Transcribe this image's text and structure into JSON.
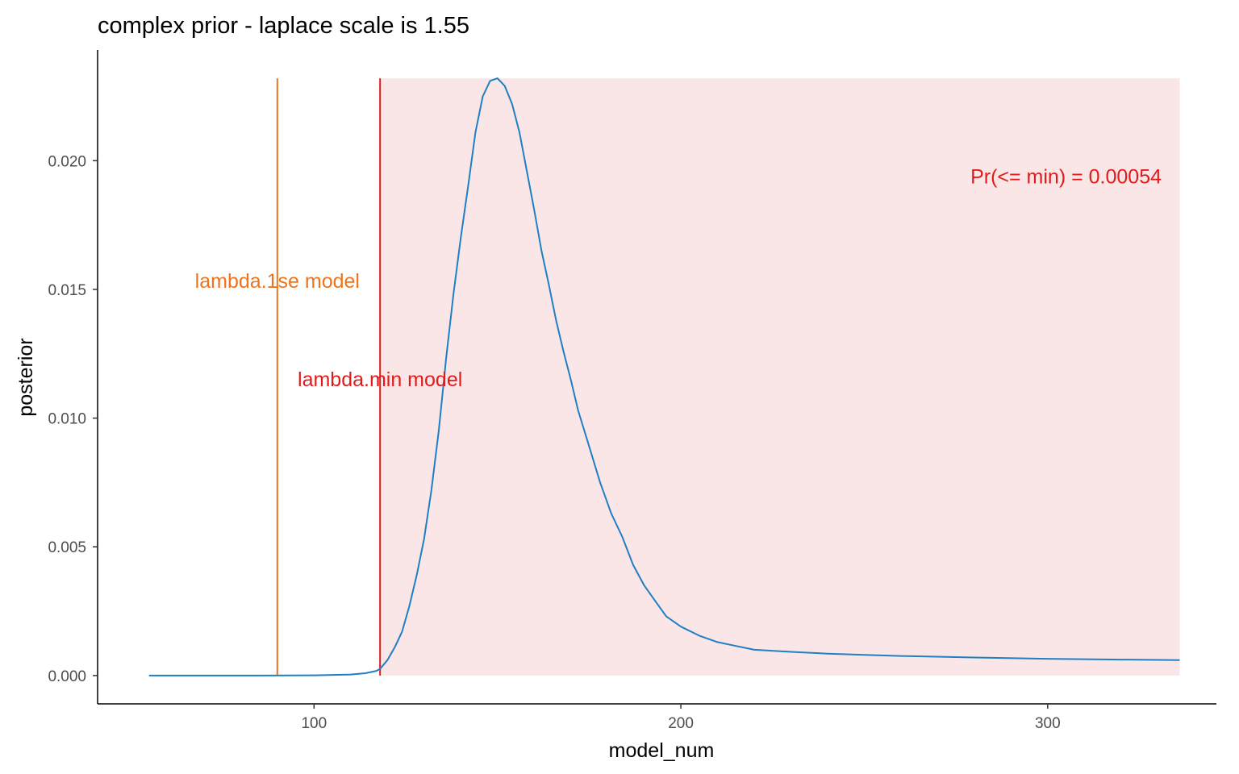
{
  "chart_data": {
    "type": "line",
    "title": "complex prior - laplace scale is 1.55",
    "xlabel": "model_num",
    "ylabel": "posterior",
    "xlim": [
      41,
      346
    ],
    "ylim": [
      -0.0011,
      0.0243
    ],
    "x_ticks": [
      100,
      200,
      300
    ],
    "x_tick_labels": [
      "100",
      "200",
      "300"
    ],
    "y_ticks": [
      0.0,
      0.005,
      0.01,
      0.015,
      0.02
    ],
    "y_tick_labels": [
      "0.000",
      "0.005",
      "0.010",
      "0.015",
      "0.020"
    ],
    "grid": false,
    "legend": "none",
    "series": [
      {
        "color": "#1f7fc4",
        "x": [
          55,
          70,
          85,
          100,
          110,
          114,
          117,
          118,
          120,
          122,
          124,
          126,
          128,
          130,
          132,
          134,
          136,
          138,
          140,
          142,
          144,
          146,
          148,
          150,
          152,
          154,
          156,
          158,
          160,
          162,
          164,
          166,
          168,
          170,
          172,
          175,
          178,
          181,
          184,
          187,
          190,
          193,
          196,
          200,
          205,
          210,
          215,
          220,
          230,
          240,
          250,
          260,
          280,
          300,
          320,
          336
        ],
        "y": [
          0.0,
          0.0,
          0.0,
          1e-05,
          4e-05,
          9e-05,
          0.00018,
          0.00026,
          0.0006,
          0.0011,
          0.0017,
          0.0027,
          0.0039,
          0.0053,
          0.0072,
          0.0095,
          0.0123,
          0.0148,
          0.017,
          0.019,
          0.0211,
          0.0225,
          0.0231,
          0.0232,
          0.0229,
          0.0222,
          0.0211,
          0.0196,
          0.0181,
          0.0165,
          0.0152,
          0.0138,
          0.0126,
          0.0115,
          0.0103,
          0.0089,
          0.0075,
          0.0063,
          0.0054,
          0.0043,
          0.0035,
          0.0029,
          0.0023,
          0.0019,
          0.00155,
          0.0013,
          0.00115,
          0.001,
          0.00092,
          0.00085,
          0.0008,
          0.00076,
          0.0007,
          0.00065,
          0.00062,
          0.0006
        ]
      }
    ],
    "shaded_region": {
      "x": [
        118,
        336
      ],
      "y": [
        0,
        0.0232
      ],
      "color": "#fbe6e7"
    },
    "vlines": [
      {
        "x": 90,
        "color": "#f0731c",
        "label": "lambda.1se model"
      },
      {
        "x": 118,
        "color": "#e11b1b",
        "label": "lambda.min model"
      }
    ],
    "annotation": {
      "text": "Pr(<= min) =  0.00054",
      "x": 305,
      "y": 0.0194,
      "color": "#e11b1b"
    }
  }
}
